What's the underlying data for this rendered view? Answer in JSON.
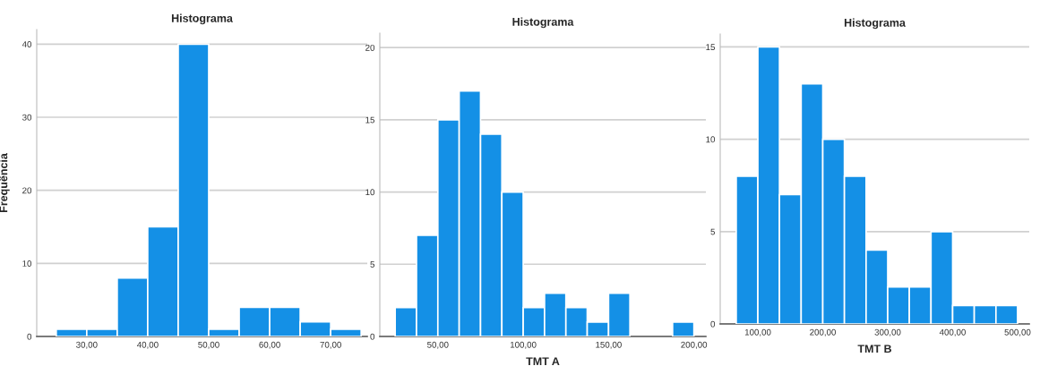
{
  "chart_data": [
    {
      "type": "histogram",
      "title": "Histograma",
      "ylabel": "Frequência",
      "bins": [
        25,
        30,
        35,
        40,
        45,
        50,
        55,
        60,
        65,
        70,
        75
      ],
      "values": [
        1,
        1,
        8,
        15,
        40,
        1,
        4,
        4,
        2,
        1
      ],
      "color": "#1490e6",
      "xlim": [
        21.8,
        76
      ],
      "ylim": [
        0,
        42
      ],
      "xticks": [
        {
          "value": 30,
          "label": "30,00"
        },
        {
          "value": 40,
          "label": "40,00"
        },
        {
          "value": 50,
          "label": "50,00"
        },
        {
          "value": 60,
          "label": "60,00"
        },
        {
          "value": 70,
          "label": "70,00"
        }
      ],
      "yticks": [
        0,
        10,
        20,
        30,
        40
      ],
      "grid": "y"
    },
    {
      "type": "histogram",
      "title": "Histograma",
      "xlabel": "TMT A",
      "bins": [
        25,
        37.5,
        50,
        62.5,
        75,
        87.5,
        100,
        112.5,
        125,
        137.5,
        150,
        162.5,
        175,
        187.5,
        200
      ],
      "values": [
        2,
        7,
        15,
        17,
        14,
        10,
        2,
        3,
        2,
        1,
        3,
        0,
        0,
        1
      ],
      "color": "#1490e6",
      "xlim": [
        16,
        207
      ],
      "ylim": [
        0,
        21
      ],
      "xticks": [
        {
          "value": 50,
          "label": "50,00"
        },
        {
          "value": 100,
          "label": "100,00"
        },
        {
          "value": 150,
          "label": "150,00"
        },
        {
          "value": 200,
          "label": "200,00"
        }
      ],
      "yticks": [
        0,
        5,
        10,
        15,
        20
      ],
      "grid": "y"
    },
    {
      "type": "histogram",
      "title": "Histograma",
      "xlabel": "TMT B",
      "bins": [
        66.7,
        100,
        133.3,
        166.7,
        200,
        233.3,
        266.7,
        300,
        333.3,
        366.7,
        400,
        433.3,
        466.7,
        500
      ],
      "values": [
        8,
        15,
        7,
        13,
        10,
        8,
        4,
        2,
        2,
        5,
        1,
        1,
        1
      ],
      "color": "#1490e6",
      "xlim": [
        42,
        518
      ],
      "ylim": [
        0,
        15.7
      ],
      "xticks": [
        {
          "value": 100,
          "label": "100,00"
        },
        {
          "value": 200,
          "label": "200,00"
        },
        {
          "value": 300,
          "label": "300,00"
        },
        {
          "value": 400,
          "label": "400,00"
        },
        {
          "value": 500,
          "label": "500,00"
        }
      ],
      "yticks": [
        0,
        5,
        10,
        15
      ],
      "grid": "y"
    }
  ]
}
